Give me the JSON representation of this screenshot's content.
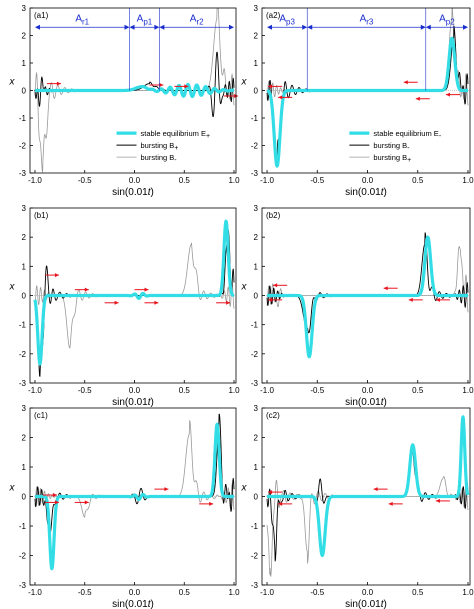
{
  "colors": {
    "stable": "#33dde6",
    "burst_primary": "#000000",
    "burst_secondary": "#9a9a9a",
    "arrow": "#e8121c",
    "region": "#1a2ecc",
    "zero_line": "#9a9a9a"
  },
  "axis_common": {
    "xlabel": "sin(0.01t)",
    "ylabel": "x",
    "xlim": [
      -1.05,
      1.02
    ],
    "ylim": [
      -3,
      3
    ],
    "xticks": [
      "-1.0",
      "-0.5",
      "0.0",
      "0.5",
      "1.0"
    ],
    "yticks": [
      "-3",
      "-2",
      "-1",
      "0",
      "1",
      "2",
      "3"
    ]
  },
  "chart_data": [
    {
      "type": "line",
      "panel": "(a1)",
      "legend": {
        "position": "lower-right",
        "entries": [
          "stable equilibrium E+",
          "bursting B+",
          "bursting B-"
        ]
      },
      "series": [
        {
          "name": "stable equilibrium E+",
          "role": "stable",
          "peaks": [
            [
              0.07,
              0.14,
              0.08
            ]
          ],
          "features": [
            [
              0.55,
              0.22,
              0.25
            ]
          ]
        },
        {
          "name": "bursting B+",
          "role": "burst_primary",
          "peaks": [
            [
              0.15,
              0.25,
              0.08
            ]
          ],
          "features": [
            [
              0.82,
              1.45,
              0.05
            ],
            [
              -0.95,
              -0.4,
              0.05
            ]
          ]
        },
        {
          "name": "bursting B-",
          "role": "burst_secondary",
          "peaks": [
            [
              -0.92,
              -2.75,
              0.04
            ],
            [
              0.83,
              2.6,
              0.05
            ]
          ],
          "features": [
            [
              -0.97,
              0.7,
              0.03
            ]
          ]
        }
      ],
      "regions": [
        {
          "label": "Ar1",
          "from": -1.0,
          "to": -0.05
        },
        {
          "label": "Ap1",
          "from": -0.05,
          "to": 0.25
        },
        {
          "label": "Ar2",
          "from": 0.25,
          "to": 1.0
        }
      ],
      "arrows": [
        {
          "x": -0.88,
          "y": 0.25,
          "dir": "right"
        },
        {
          "x": 0.15,
          "y": 0.2,
          "dir": "right"
        },
        {
          "x": 0.4,
          "y": 0.15,
          "dir": "right"
        },
        {
          "x": 0.9,
          "y": -0.2,
          "dir": "right"
        }
      ]
    },
    {
      "type": "line",
      "panel": "(a2)",
      "legend": {
        "position": "lower-right",
        "entries": [
          "stable equilibrium E-",
          "bursting B-",
          "bursting B+"
        ]
      },
      "series": [
        {
          "name": "stable equilibrium E-",
          "role": "stable",
          "peaks": [
            [
              -0.9,
              -2.75,
              0.04
            ],
            [
              0.84,
              1.9,
              0.04
            ]
          ],
          "features": []
        },
        {
          "name": "bursting B-",
          "role": "burst_primary",
          "peaks": [
            [
              -0.9,
              -2.7,
              0.04
            ],
            [
              0.86,
              1.95,
              0.04
            ]
          ],
          "features": [
            [
              -0.95,
              0.55,
              0.02
            ]
          ]
        },
        {
          "name": "bursting B+",
          "role": "burst_secondary",
          "peaks": [
            [
              0.84,
              2.6,
              0.04
            ]
          ],
          "features": []
        }
      ],
      "regions": [
        {
          "label": "Ap3",
          "from": -1.0,
          "to": -0.6
        },
        {
          "label": "Ar3",
          "from": -0.6,
          "to": 0.58
        },
        {
          "label": "Ap2",
          "from": 0.58,
          "to": 1.0
        }
      ],
      "arrows": [
        {
          "x": -0.85,
          "y": 0.15,
          "dir": "left"
        },
        {
          "x": -0.75,
          "y": -0.25,
          "dir": "left"
        },
        {
          "x": 0.5,
          "y": 0.3,
          "dir": "left"
        },
        {
          "x": 0.62,
          "y": -0.3,
          "dir": "left"
        },
        {
          "x": 0.92,
          "y": -0.15,
          "dir": "left"
        }
      ]
    },
    {
      "type": "line",
      "panel": "(b1)",
      "legend": null,
      "series": [
        {
          "name": "",
          "role": "stable",
          "peaks": [
            [
              -0.95,
              -2.35,
              0.03
            ],
            [
              0.92,
              2.55,
              0.03
            ]
          ],
          "features": [
            [
              0.05,
              0.1,
              0.06
            ]
          ]
        },
        {
          "name": "",
          "role": "burst_primary",
          "peaks": [
            [
              -0.95,
              -2.5,
              0.03
            ],
            [
              0.94,
              2.25,
              0.03
            ]
          ],
          "features": [
            [
              -0.88,
              0.9,
              0.03
            ]
          ]
        },
        {
          "name": "",
          "role": "burst_secondary",
          "peaks": [
            [
              -0.65,
              -1.8,
              0.04
            ],
            [
              0.57,
              1.75,
              0.05
            ]
          ],
          "features": []
        }
      ],
      "regions": [],
      "arrows": [
        {
          "x": -0.9,
          "y": 0.7,
          "dir": "right"
        },
        {
          "x": -0.6,
          "y": 0.2,
          "dir": "right"
        },
        {
          "x": -0.3,
          "y": -0.25,
          "dir": "right"
        },
        {
          "x": 0.0,
          "y": 0.2,
          "dir": "right"
        },
        {
          "x": 0.1,
          "y": -0.25,
          "dir": "right"
        },
        {
          "x": 0.82,
          "y": -0.25,
          "dir": "right"
        }
      ]
    },
    {
      "type": "line",
      "panel": "(b2)",
      "legend": null,
      "series": [
        {
          "name": "",
          "role": "stable",
          "peaks": [
            [
              -0.58,
              -2.1,
              0.04
            ],
            [
              0.6,
              2.0,
              0.04
            ]
          ],
          "features": []
        },
        {
          "name": "",
          "role": "burst_primary",
          "peaks": [
            [
              -0.6,
              -1.2,
              0.05
            ],
            [
              0.57,
              1.75,
              0.04
            ]
          ],
          "features": []
        },
        {
          "name": "",
          "role": "burst_secondary",
          "peaks": [
            [
              0.92,
              1.8,
              0.03
            ]
          ],
          "features": [
            [
              -0.9,
              -0.4,
              0.04
            ]
          ]
        }
      ],
      "regions": [],
      "arrows": [
        {
          "x": -0.8,
          "y": 0.35,
          "dir": "left"
        },
        {
          "x": -0.85,
          "y": -0.15,
          "dir": "left"
        },
        {
          "x": 0.3,
          "y": 0.25,
          "dir": "left"
        },
        {
          "x": 0.55,
          "y": -0.15,
          "dir": "left"
        },
        {
          "x": 0.82,
          "y": -0.15,
          "dir": "left"
        }
      ]
    },
    {
      "type": "line",
      "panel": "(c1)",
      "legend": null,
      "series": [
        {
          "name": "",
          "role": "stable",
          "peaks": [
            [
              -0.83,
              -2.45,
              0.03
            ],
            [
              0.83,
              2.45,
              0.03
            ]
          ],
          "features": [
            [
              0.05,
              0.1,
              0.06
            ]
          ]
        },
        {
          "name": "",
          "role": "burst_primary",
          "peaks": [
            [
              -0.85,
              -1.1,
              0.04
            ],
            [
              0.85,
              2.3,
              0.03
            ]
          ],
          "features": [
            [
              0.05,
              -0.3,
              0.06
            ]
          ]
        },
        {
          "name": "",
          "role": "burst_secondary",
          "peaks": [
            [
              -0.5,
              -0.7,
              0.04
            ],
            [
              0.55,
              2.1,
              0.05
            ]
          ],
          "features": []
        }
      ],
      "regions": [],
      "arrows": [
        {
          "x": -0.92,
          "y": 0.05,
          "dir": "right"
        },
        {
          "x": -0.9,
          "y": -0.2,
          "dir": "right"
        },
        {
          "x": -0.6,
          "y": -0.2,
          "dir": "right"
        },
        {
          "x": 0.2,
          "y": 0.25,
          "dir": "right"
        },
        {
          "x": 0.65,
          "y": -0.25,
          "dir": "right"
        }
      ]
    },
    {
      "type": "line",
      "panel": "(c2)",
      "legend": null,
      "series": [
        {
          "name": "",
          "role": "stable",
          "peaks": [
            [
              -0.45,
              -2.0,
              0.04
            ],
            [
              0.45,
              1.75,
              0.04
            ],
            [
              0.95,
              2.7,
              0.025
            ]
          ],
          "features": []
        },
        {
          "name": "",
          "role": "burst_primary",
          "peaks": [
            [
              -0.92,
              -1.7,
              0.03
            ],
            [
              0.45,
              1.5,
              0.04
            ]
          ],
          "features": [
            [
              -0.47,
              -0.6,
              0.04
            ]
          ]
        },
        {
          "name": "",
          "role": "burst_secondary",
          "peaks": [
            [
              -0.97,
              -2.7,
              0.025
            ],
            [
              -0.6,
              -1.85,
              0.03
            ],
            [
              0.75,
              0.6,
              0.04
            ]
          ],
          "features": []
        }
      ],
      "regions": [],
      "arrows": [
        {
          "x": -0.85,
          "y": 0.15,
          "dir": "left"
        },
        {
          "x": -0.75,
          "y": -0.25,
          "dir": "left"
        },
        {
          "x": 0.2,
          "y": 0.25,
          "dir": "left"
        },
        {
          "x": 0.35,
          "y": -0.25,
          "dir": "left"
        },
        {
          "x": 0.82,
          "y": -0.15,
          "dir": "left"
        }
      ]
    }
  ]
}
